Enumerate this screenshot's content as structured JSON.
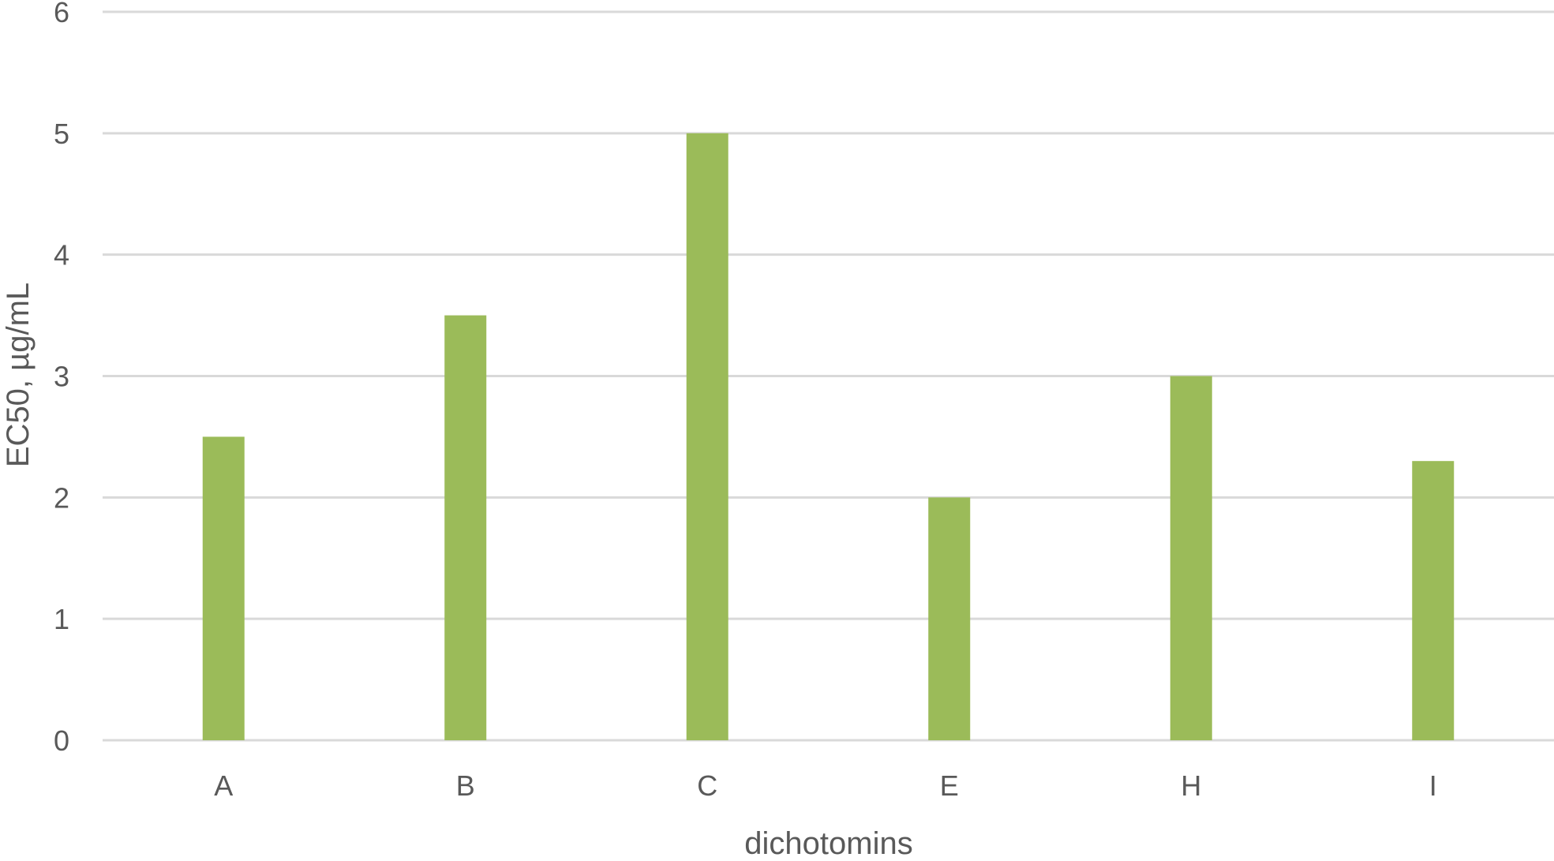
{
  "chart_data": {
    "type": "bar",
    "title": "",
    "xlabel": "dichotomins",
    "ylabel": "EC50, µg/mL",
    "categories": [
      "A",
      "B",
      "C",
      "E",
      "H",
      "I"
    ],
    "series": [
      {
        "values": [
          2.5,
          3.5,
          5.0,
          2.0,
          3.0,
          2.3
        ]
      }
    ],
    "ylim": [
      0,
      6
    ],
    "yticks": [
      0,
      1,
      2,
      3,
      4,
      5,
      6
    ],
    "grid": true,
    "legend": "none",
    "colors": {
      "bar": "#9BBB59",
      "grid": "#D9D9D9",
      "text": "#595959"
    }
  }
}
